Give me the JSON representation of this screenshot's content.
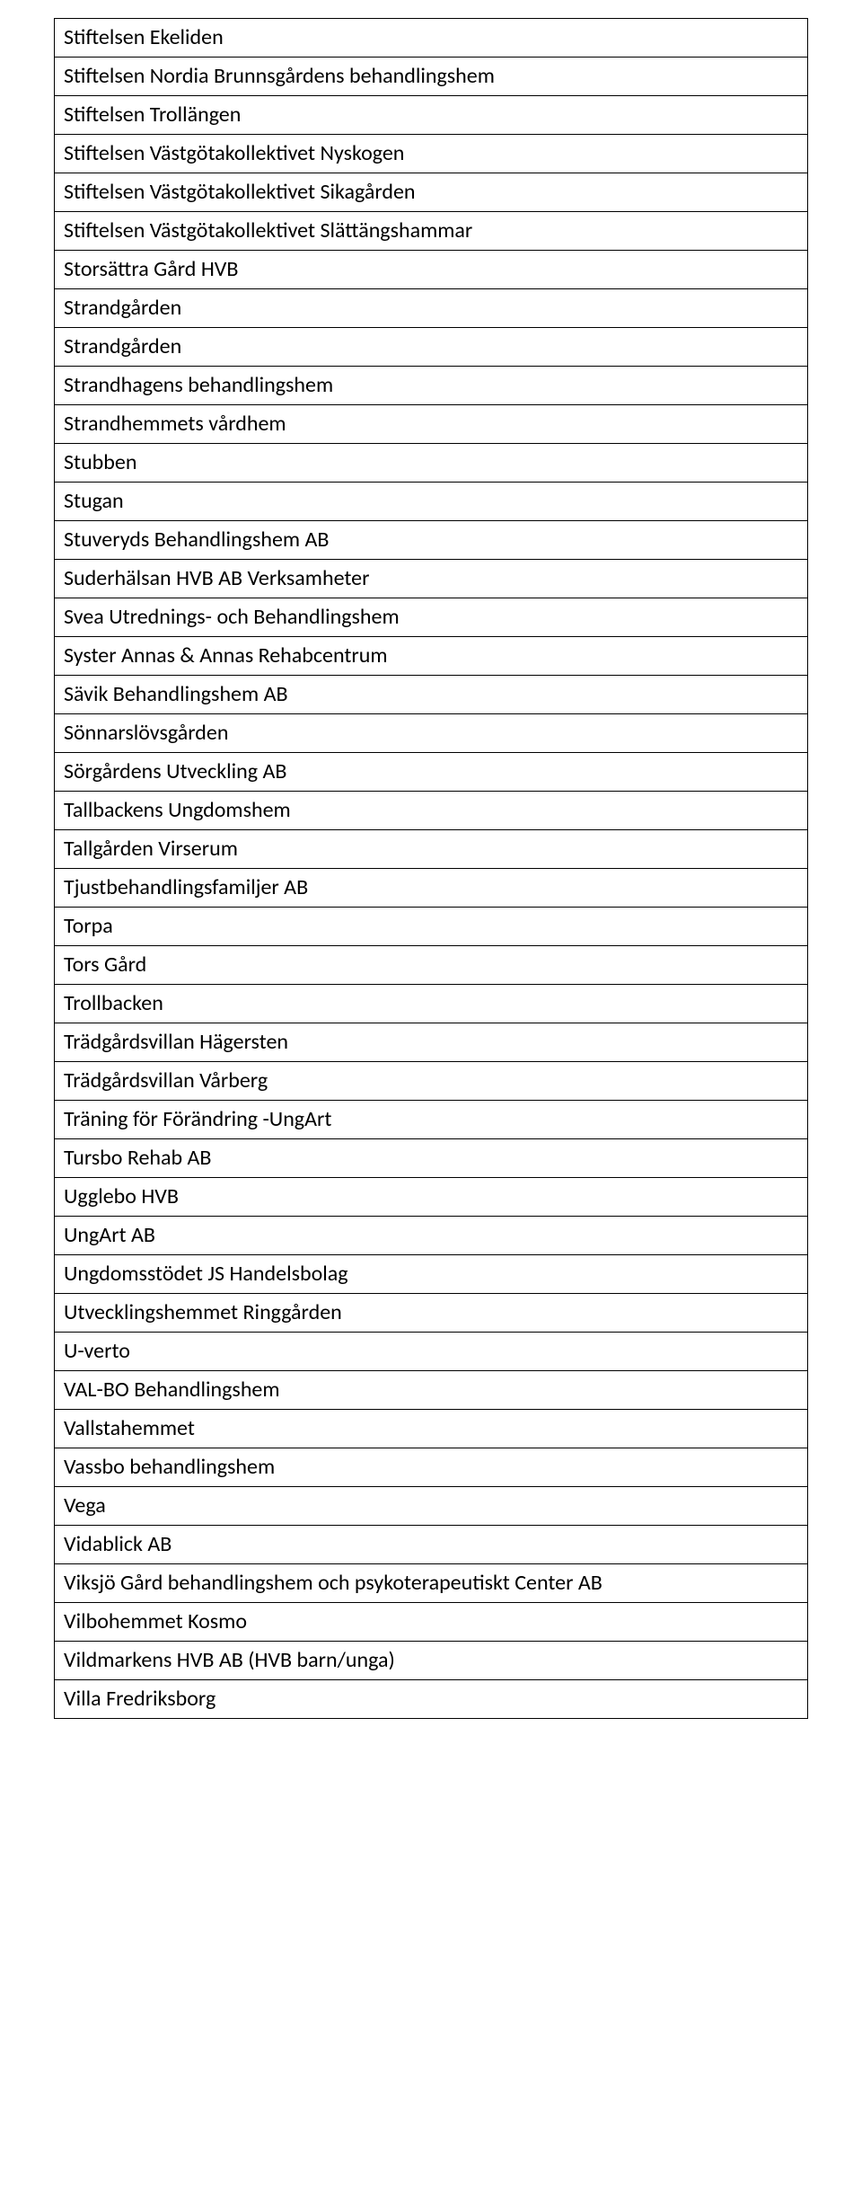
{
  "table": {
    "rows": [
      "Stiftelsen Ekeliden",
      "Stiftelsen Nordia Brunnsgårdens behandlingshem",
      "Stiftelsen Trollängen",
      "Stiftelsen Västgötakollektivet Nyskogen",
      "Stiftelsen Västgötakollektivet Sikagården",
      "Stiftelsen Västgötakollektivet Slättängshammar",
      "Storsättra Gård HVB",
      "Strandgården",
      "Strandgården",
      "Strandhagens behandlingshem",
      "Strandhemmets vårdhem",
      "Stubben",
      "Stugan",
      "Stuveryds Behandlingshem AB",
      "Suderhälsan HVB AB Verksamheter",
      "Svea Utrednings- och Behandlingshem",
      "Syster Annas & Annas Rehabcentrum",
      "Sävik Behandlingshem AB",
      "Sönnarslövsgården",
      "Sörgårdens Utveckling AB",
      "Tallbackens Ungdomshem",
      "Tallgården Virserum",
      "Tjustbehandlingsfamiljer AB",
      "Torpa",
      "Tors Gård",
      "Trollbacken",
      "Trädgårdsvillan Hägersten",
      "Trädgårdsvillan Vårberg",
      "Träning för Förändring -UngArt",
      "Tursbo Rehab AB",
      "Ugglebo HVB",
      "UngArt AB",
      "Ungdomsstödet JS Handelsbolag",
      "Utvecklingshemmet Ringgården",
      "U-verto",
      "VAL-BO Behandlingshem",
      "Vallstahemmet",
      "Vassbo behandlingshem",
      "Vega",
      "Vidablick AB",
      "Viksjö Gård behandlingshem och psykoterapeutiskt Center AB",
      "Vilbohemmet Kosmo",
      "Vildmarkens HVB AB (HVB barn/unga)",
      "Villa Fredriksborg"
    ]
  }
}
